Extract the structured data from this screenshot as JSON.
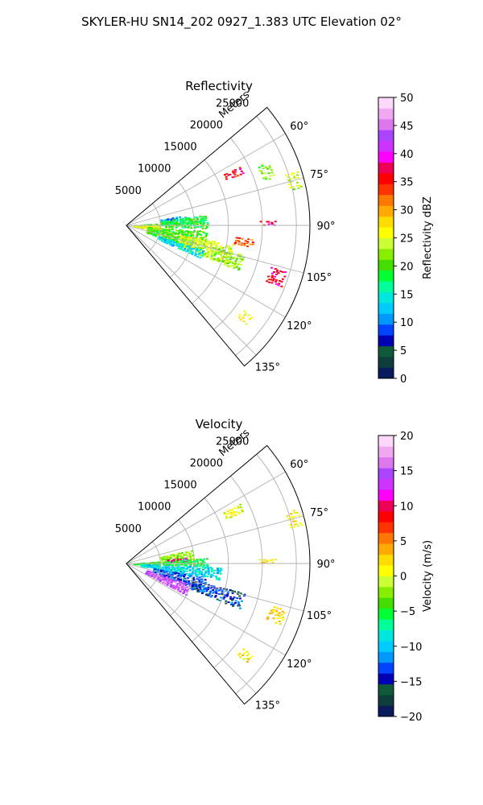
{
  "figure": {
    "suptitle": "SKYLER-HU  SN14_202  0927_1.383 UTC Elevation 02°"
  },
  "chart_data": [
    {
      "type": "heatmap",
      "projection": "polar-sector",
      "title": "Reflectivity",
      "range_label": "Meters",
      "azimuth_range_deg": [
        50,
        140
      ],
      "range_max_m": 27000,
      "radial_ticks": [
        "5000",
        "10000",
        "15000",
        "20000",
        "25000"
      ],
      "radial_tick_values": [
        5000,
        10000,
        15000,
        20000,
        25000
      ],
      "angular_ticks": [
        "60°",
        "75°",
        "90°",
        "105°",
        "120°",
        "135°"
      ],
      "angular_tick_values": [
        60,
        75,
        90,
        105,
        120,
        135
      ],
      "grid": true,
      "colorbar": {
        "label": "Reflectivity dBZ",
        "range": [
          0,
          50
        ],
        "ticks": [
          "0",
          "5",
          "10",
          "15",
          "20",
          "25",
          "30",
          "35",
          "40",
          "45",
          "50"
        ],
        "tick_values": [
          0,
          5,
          10,
          15,
          20,
          25,
          30,
          35,
          40,
          45,
          50
        ],
        "colors": [
          "#0a1a5c",
          "#0e3d3c",
          "#0f5a3a",
          "#0000b5",
          "#0044ff",
          "#0099ff",
          "#00ccff",
          "#00e8dd",
          "#00ff99",
          "#00ff33",
          "#44dd00",
          "#88ee00",
          "#ccff33",
          "#ffff00",
          "#ffdd00",
          "#ffaa00",
          "#ff7700",
          "#ff3300",
          "#ff0000",
          "#ee0055",
          "#ff00ff",
          "#cc33ff",
          "#aa44ff",
          "#dd77ee",
          "#f0a8f0",
          "#fdd8fb"
        ]
      },
      "regions": [
        {
          "az": [
            62,
            66
          ],
          "r": [
            16000,
            19000
          ],
          "value": 36
        },
        {
          "az": [
            65,
            72
          ],
          "r": [
            21000,
            23000
          ],
          "value": 22
        },
        {
          "az": [
            72,
            78
          ],
          "r": [
            24500,
            26500
          ],
          "value": 24
        },
        {
          "az": [
            80,
            84
          ],
          "r": [
            5000,
            9000
          ],
          "value": 11
        },
        {
          "az": [
            82,
            88
          ],
          "r": [
            5000,
            12000
          ],
          "value": 18
        },
        {
          "az": [
            86,
            92
          ],
          "r": [
            1000,
            12000
          ],
          "value": 19
        },
        {
          "az": [
            88,
            98
          ],
          "r": [
            1000,
            5000
          ],
          "value": 26
        },
        {
          "az": [
            94,
            110
          ],
          "r": [
            3000,
            12000
          ],
          "value": 20
        },
        {
          "az": [
            100,
            112
          ],
          "r": [
            8000,
            16000
          ],
          "value": 25
        },
        {
          "az": [
            104,
            112
          ],
          "r": [
            13000,
            18000
          ],
          "value": 22
        },
        {
          "az": [
            106,
            112
          ],
          "r": [
            22000,
            24500
          ],
          "value": 37
        },
        {
          "az": [
            108,
            114
          ],
          "r": [
            5000,
            12000
          ],
          "value": 14
        },
        {
          "az": [
            88,
            90
          ],
          "r": [
            19500,
            22000
          ],
          "value": 37
        },
        {
          "az": [
            96,
            100
          ],
          "r": [
            16000,
            19000
          ],
          "value": 33
        },
        {
          "az": [
            126,
            130
          ],
          "r": [
            21000,
            23000
          ],
          "value": 26
        }
      ]
    },
    {
      "type": "heatmap",
      "projection": "polar-sector",
      "title": "Velocity",
      "range_label": "Meters",
      "azimuth_range_deg": [
        50,
        140
      ],
      "range_max_m": 27000,
      "radial_ticks": [
        "5000",
        "10000",
        "15000",
        "20000",
        "25000"
      ],
      "radial_tick_values": [
        5000,
        10000,
        15000,
        20000,
        25000
      ],
      "angular_ticks": [
        "60°",
        "75°",
        "90°",
        "105°",
        "120°",
        "135°"
      ],
      "angular_tick_values": [
        60,
        75,
        90,
        105,
        120,
        135
      ],
      "grid": true,
      "colorbar": {
        "label": "Velocity (m/s)",
        "range": [
          -20,
          20
        ],
        "ticks": [
          "−20",
          "−15",
          "−10",
          "−5",
          "0",
          "5",
          "10",
          "15",
          "20"
        ],
        "tick_values": [
          -20,
          -15,
          -10,
          -5,
          0,
          5,
          10,
          15,
          20
        ],
        "colors": [
          "#0a1a5c",
          "#0e3d3c",
          "#0f5a3a",
          "#0000b5",
          "#0044ff",
          "#0099ff",
          "#00ccff",
          "#00e8dd",
          "#00ff99",
          "#00ff33",
          "#44dd00",
          "#88ee00",
          "#ccff33",
          "#ffff00",
          "#ffdd00",
          "#ffaa00",
          "#ff7700",
          "#ff3300",
          "#ff0000",
          "#ee0055",
          "#ff00ff",
          "#cc33ff",
          "#aa44ff",
          "#dd77ee",
          "#f0a8f0",
          "#fdd8fb"
        ]
      },
      "regions": [
        {
          "az": [
            62,
            66
          ],
          "r": [
            16000,
            19000
          ],
          "value": 0
        },
        {
          "az": [
            72,
            78
          ],
          "r": [
            24500,
            26500
          ],
          "value": 1
        },
        {
          "az": [
            78,
            86
          ],
          "r": [
            5000,
            10000
          ],
          "value": -2
        },
        {
          "az": [
            84,
            88
          ],
          "r": [
            6000,
            9000
          ],
          "value": 10
        },
        {
          "az": [
            86,
            92
          ],
          "r": [
            1000,
            12000
          ],
          "value": -5
        },
        {
          "az": [
            92,
            100
          ],
          "r": [
            2000,
            14000
          ],
          "value": -9
        },
        {
          "az": [
            100,
            110
          ],
          "r": [
            4000,
            12000
          ],
          "value": -13
        },
        {
          "az": [
            108,
            118
          ],
          "r": [
            3000,
            10000
          ],
          "value": 15
        },
        {
          "az": [
            104,
            112
          ],
          "r": [
            10000,
            18000
          ],
          "value": -14
        },
        {
          "az": [
            106,
            112
          ],
          "r": [
            22000,
            24500
          ],
          "value": 2
        },
        {
          "az": [
            88,
            90
          ],
          "r": [
            19500,
            22000
          ],
          "value": 1
        },
        {
          "az": [
            126,
            130
          ],
          "r": [
            21000,
            23000
          ],
          "value": 1
        }
      ]
    }
  ]
}
